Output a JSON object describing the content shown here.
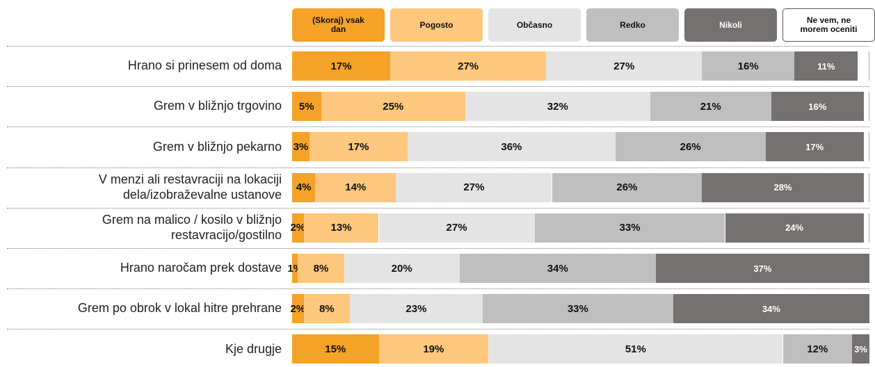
{
  "chart_data": {
    "type": "stacked-bar",
    "categories": [
      "Hrano si prinesem od doma",
      "Grem v bližnjo trgovino",
      "Grem v bližnjo pekarno",
      "V menzi ali restavraciji na lokaciji dela/izobraževalne ustanove",
      "Grem na malico / kosilo v bližnjo restavracijo/gostilno",
      "Hrano naročam prek dostave",
      "Grem po obrok v lokal hitre prehrane",
      "Kje drugje"
    ],
    "xlim": [
      0,
      100
    ],
    "series": [
      {
        "name": "(Skoraj) vsak dan",
        "color": "#f5a228",
        "values": [
          17,
          5,
          3,
          4,
          2,
          1,
          2,
          15
        ],
        "value_labels": [
          "17%",
          "5%",
          "3%",
          "4%",
          "2%",
          "1%",
          "2%",
          "15%"
        ]
      },
      {
        "name": "Pogosto",
        "color": "#fdc77d",
        "values": [
          27,
          25,
          17,
          14,
          13,
          8,
          8,
          19
        ],
        "value_labels": [
          "27%",
          "25%",
          "17%",
          "14%",
          "13%",
          "8%",
          "8%",
          "19%"
        ]
      },
      {
        "name": "Občasno",
        "color": "#e4e4e4",
        "values": [
          27,
          32,
          36,
          27,
          27,
          20,
          23,
          51
        ],
        "value_labels": [
          "27%",
          "32%",
          "36%",
          "27%",
          "27%",
          "20%",
          "23%",
          "51%"
        ]
      },
      {
        "name": "Redko",
        "color": "#bfbfbf",
        "values": [
          16,
          21,
          26,
          26,
          33,
          34,
          33,
          12
        ],
        "value_labels": [
          "16%",
          "21%",
          "26%",
          "26%",
          "33%",
          "34%",
          "33%",
          "12%"
        ]
      },
      {
        "name": "Nikoli",
        "color": "#767171",
        "values": [
          11,
          16,
          17,
          28,
          24,
          37,
          34,
          3
        ],
        "value_labels": [
          "11%",
          "16%",
          "17%",
          "28%",
          "24%",
          "37%",
          "34%",
          "3%"
        ]
      },
      {
        "name": "Ne vem, ne morem oceniti",
        "color": "#ffffff",
        "values": [
          2,
          1,
          1,
          1,
          1,
          0,
          0,
          0
        ]
      }
    ]
  }
}
